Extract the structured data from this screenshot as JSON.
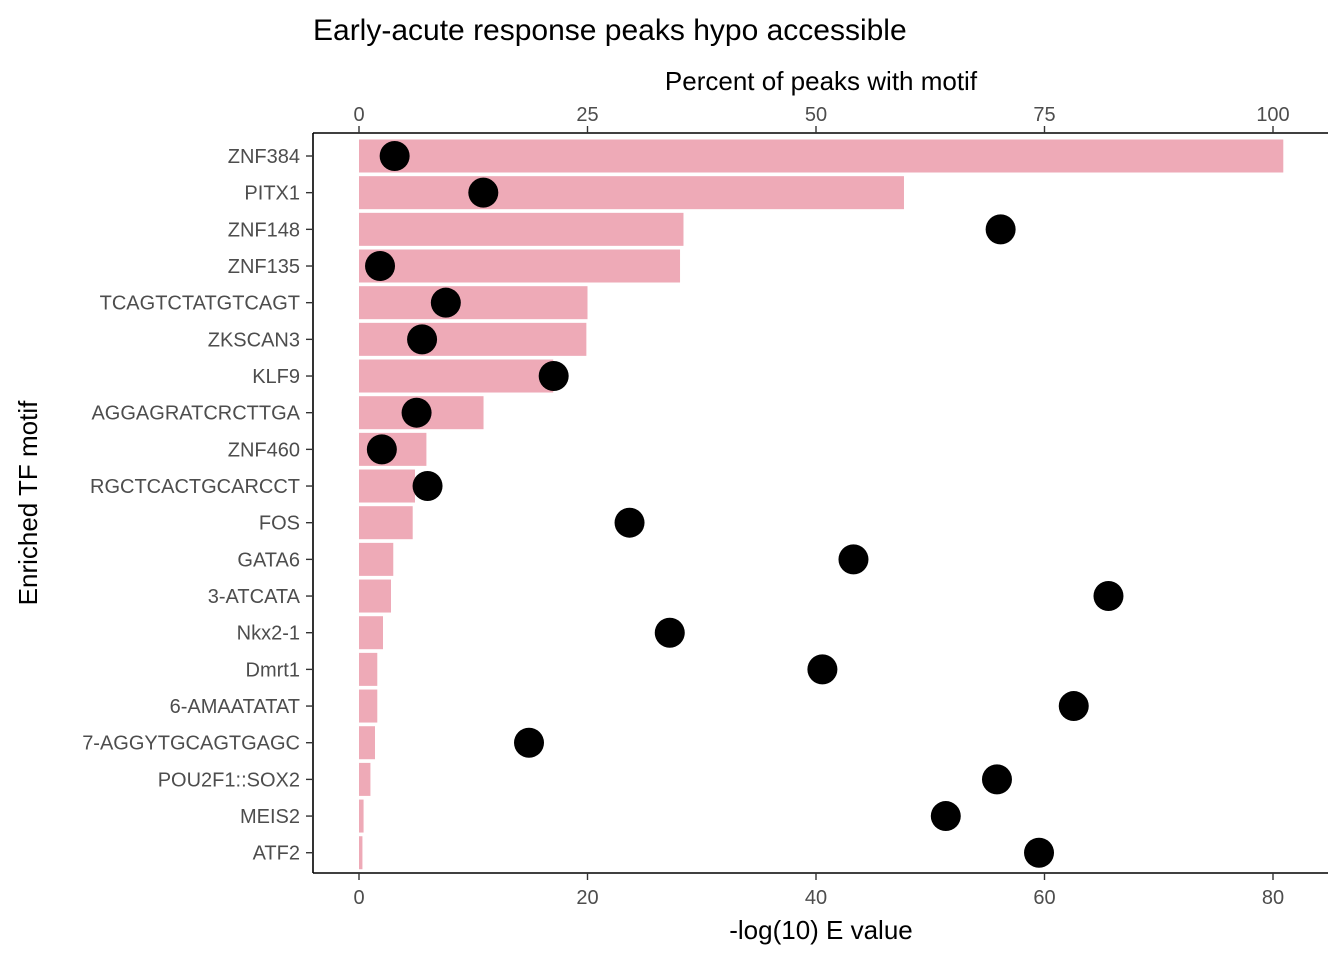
{
  "chart_data": {
    "type": "bar",
    "title": "Early-acute response peaks hypo accessible",
    "xlabel": "-log(10) E value",
    "x2label": "Percent of peaks with motif",
    "ylabel": "Enriched TF motif",
    "xlim": [
      0,
      80
    ],
    "x_ticks": [
      0,
      20,
      40,
      60,
      80
    ],
    "x2lim": [
      0,
      100
    ],
    "x2_ticks": [
      0,
      25,
      50,
      75,
      100
    ],
    "grid": false,
    "bar_color": "#eeaab7",
    "point_color": "#000000",
    "categories": [
      "ZNF384",
      "PITX1",
      "ZNF148",
      "ZNF135",
      "TCAGTCTATGTCAGT",
      "ZKSCAN3",
      "KLF9",
      "AGGAGRATCRCTTGA",
      "ZNF460",
      "RGCTCACTGCARCCT",
      "FOS",
      "GATA6",
      "3-ATCATA",
      "Nkx2-1",
      "Dmrt1",
      "6-AMAATATAT",
      "7-AGGYTGCAGTGAGC",
      "POU2F1::SOX2",
      "MEIS2",
      "ATF2"
    ],
    "series": [
      {
        "type": "bar",
        "axis": "bottom",
        "values": [
          80.9,
          47.7,
          28.4,
          28.1,
          20.0,
          19.9,
          17.0,
          10.9,
          5.9,
          4.9,
          4.7,
          3.0,
          2.8,
          2.1,
          1.6,
          1.6,
          1.4,
          1.0,
          0.4,
          0.3
        ]
      },
      {
        "type": "scatter",
        "axis": "top",
        "values": [
          3.9,
          13.6,
          70.2,
          2.3,
          9.5,
          6.9,
          21.3,
          6.3,
          2.5,
          7.5,
          29.6,
          54.1,
          82.0,
          34.0,
          50.7,
          78.2,
          18.6,
          69.8,
          64.2,
          74.4
        ]
      }
    ]
  }
}
